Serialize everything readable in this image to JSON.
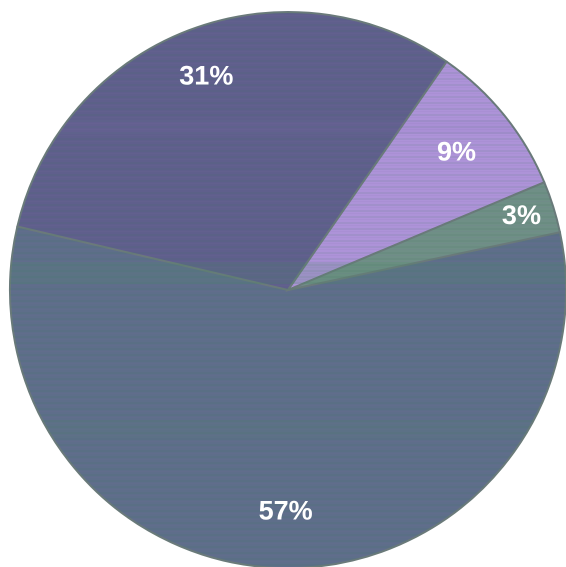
{
  "chart_data": {
    "type": "pie",
    "slices": [
      {
        "label": "57%",
        "value": 57,
        "color": "#5e6e8a"
      },
      {
        "label": "31%",
        "value": 31,
        "color": "#5f5f8c"
      },
      {
        "label": "9%",
        "value": 9,
        "color": "#ad93d8"
      },
      {
        "label": "3%",
        "value": 3,
        "color": "#6f8f86"
      }
    ],
    "start_angle_deg": -12,
    "direction": "clockwise",
    "legend": "none"
  }
}
